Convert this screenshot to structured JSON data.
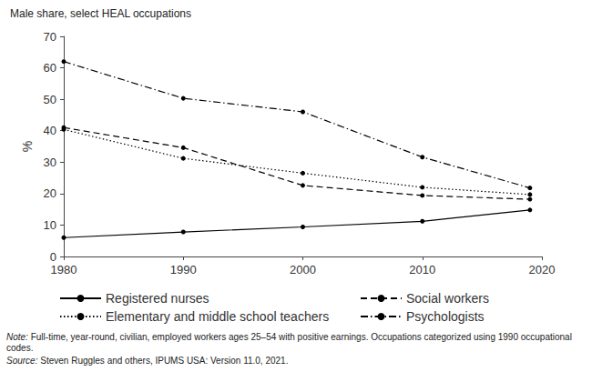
{
  "chart_data": {
    "type": "line",
    "title": "Male share, select HEAL occupations",
    "y_label": "%",
    "x": [
      1980,
      1990,
      2000,
      2010,
      2019
    ],
    "xlim": [
      1980,
      2020
    ],
    "xticks": [
      1980,
      1990,
      2000,
      2010,
      2020
    ],
    "ylim": [
      0,
      70
    ],
    "yticks": [
      0,
      10,
      20,
      30,
      40,
      50,
      60,
      70
    ],
    "grid": false,
    "legend": "bottom",
    "marker": "circle",
    "series": [
      {
        "name": "Registered nurses",
        "color": "#000000",
        "line_style": "solid",
        "values": [
          6,
          7.8,
          9.4,
          11.2,
          14.8
        ]
      },
      {
        "name": "Social workers",
        "color": "#000000",
        "line_style": "dashed",
        "values": [
          41,
          34.6,
          22.6,
          19.4,
          18.2
        ]
      },
      {
        "name": "Elementary and middle school teachers",
        "color": "#000000",
        "line_style": "dotted",
        "values": [
          40.4,
          31.2,
          26.5,
          22,
          19.7
        ]
      },
      {
        "name": "Psychologists",
        "color": "#000000",
        "line_style": "dashdot",
        "values": [
          62,
          50.3,
          46,
          31.6,
          21.8
        ]
      }
    ],
    "note": "Note: Full-time, year-round, civilian, employed workers ages 25–54 with positive earnings. Occupations categorized using 1990 occupational codes.",
    "source": "Source: Steven Ruggles and others, IPUMS USA: Version 11.0, 2021."
  }
}
